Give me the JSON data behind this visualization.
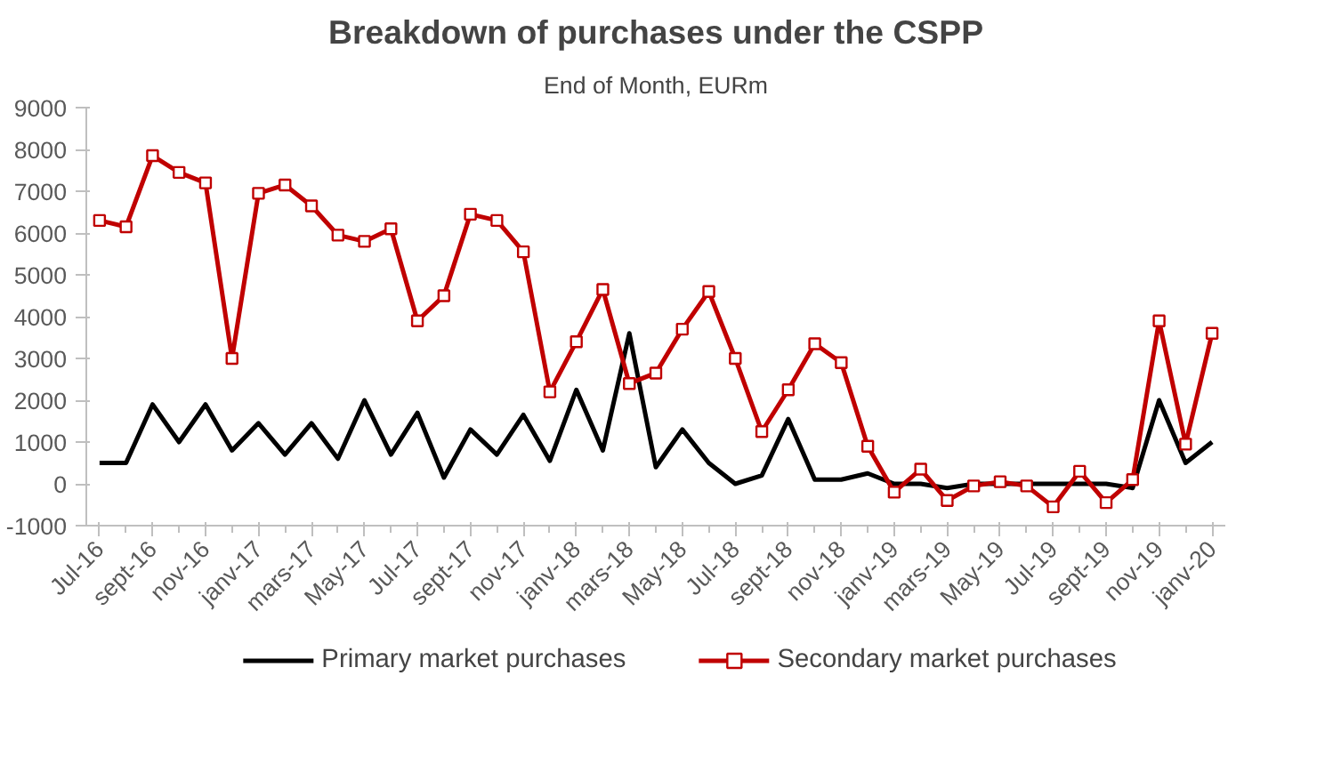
{
  "chart_data": {
    "type": "line",
    "title": "Breakdown of purchases under the CSPP",
    "subtitle": "End of Month, EURm",
    "categories": [
      "Jul-16",
      null,
      "sept-16",
      null,
      "nov-16",
      null,
      "janv-17",
      null,
      "mars-17",
      null,
      "May-17",
      null,
      "Jul-17",
      null,
      "sept-17",
      null,
      "nov-17",
      null,
      "janv-18",
      null,
      "mars-18",
      null,
      "May-18",
      null,
      "Jul-18",
      null,
      "sept-18",
      null,
      "nov-18",
      null,
      "janv-19",
      null,
      "mars-19",
      null,
      "May-19",
      null,
      "Jul-19",
      null,
      "sept-19",
      null,
      "nov-19",
      null,
      "janv-20"
    ],
    "series": [
      {
        "name": "Primary market purchases",
        "color": "#000000",
        "marker": "none",
        "values": [
          500,
          500,
          1900,
          1000,
          1900,
          800,
          1450,
          700,
          1450,
          600,
          2000,
          700,
          1700,
          150,
          1300,
          700,
          1650,
          550,
          2250,
          800,
          3600,
          400,
          1300,
          500,
          0,
          200,
          1550,
          100,
          100,
          250,
          0,
          0,
          -100,
          0,
          0,
          0,
          0,
          0,
          0,
          -100,
          2000,
          500,
          1000
        ]
      },
      {
        "name": "Secondary market purchases",
        "color": "#c00000",
        "marker": "square",
        "values": [
          6300,
          6150,
          7850,
          7450,
          7200,
          3000,
          6950,
          7150,
          6650,
          5950,
          5800,
          6100,
          3900,
          4500,
          6450,
          6300,
          5550,
          2200,
          3400,
          4650,
          2400,
          2650,
          3700,
          4600,
          3000,
          1250,
          2250,
          3350,
          2900,
          900,
          -200,
          350,
          -400,
          -50,
          50,
          -50,
          -550,
          300,
          -450,
          100,
          3900,
          950,
          3600
        ]
      }
    ],
    "ylim": [
      -1000,
      9000
    ],
    "yticks": [
      -1000,
      0,
      1000,
      2000,
      3000,
      4000,
      5000,
      6000,
      7000,
      8000,
      9000
    ],
    "grid": false,
    "legend": "bottom",
    "line_style": "solid"
  }
}
